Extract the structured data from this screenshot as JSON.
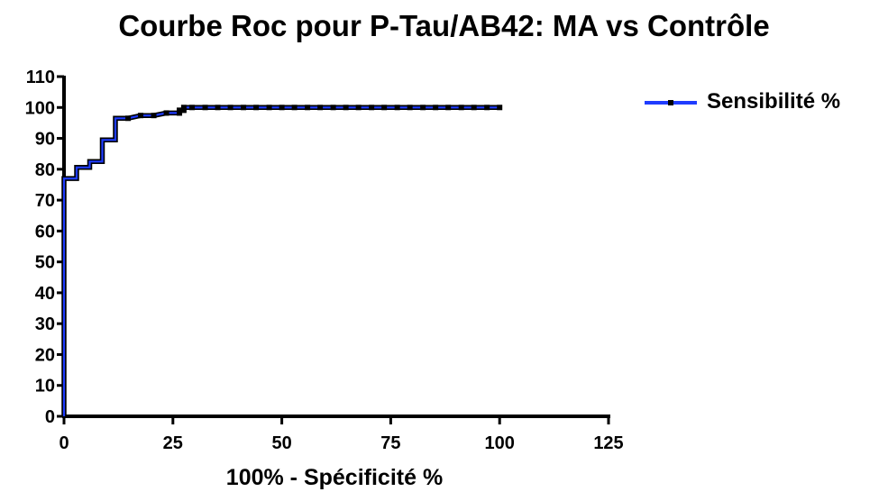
{
  "chart_data": {
    "type": "line",
    "title": "Courbe Roc pour P-Tau/AB42: MA vs Contrôle",
    "xlabel": "100% - Spécificité %",
    "ylabel": "",
    "xlim": [
      0,
      125
    ],
    "ylim": [
      0,
      110
    ],
    "x_ticks": [
      0,
      25,
      50,
      75,
      100,
      125
    ],
    "y_ticks": [
      0,
      10,
      20,
      30,
      40,
      50,
      60,
      70,
      80,
      90,
      100,
      110
    ],
    "legend_position": "right",
    "grid": false,
    "series": [
      {
        "name": "Sensibilité %",
        "color": "#1f3cff",
        "marker": "square",
        "points": [
          [
            0,
            0
          ],
          [
            0,
            77
          ],
          [
            2.9,
            77
          ],
          [
            2.9,
            80.6
          ],
          [
            5.9,
            80.6
          ],
          [
            5.9,
            82.5
          ],
          [
            8.8,
            82.5
          ],
          [
            8.8,
            89.5
          ],
          [
            11.8,
            89.5
          ],
          [
            11.8,
            96.5
          ],
          [
            14.7,
            96.5
          ],
          [
            17.6,
            97.4
          ],
          [
            20.6,
            97.4
          ],
          [
            23.5,
            98.2
          ],
          [
            26.5,
            98.2
          ],
          [
            26.5,
            99.1
          ],
          [
            27.5,
            99.1
          ],
          [
            27.5,
            100
          ],
          [
            29.4,
            100
          ],
          [
            32.4,
            100
          ],
          [
            35.3,
            100
          ],
          [
            38.2,
            100
          ],
          [
            41.2,
            100
          ],
          [
            44.1,
            100
          ],
          [
            47.1,
            100
          ],
          [
            50,
            100
          ],
          [
            52.9,
            100
          ],
          [
            55.9,
            100
          ],
          [
            58.8,
            100
          ],
          [
            61.8,
            100
          ],
          [
            64.7,
            100
          ],
          [
            67.6,
            100
          ],
          [
            70.6,
            100
          ],
          [
            73.5,
            100
          ],
          [
            76.5,
            100
          ],
          [
            79.4,
            100
          ],
          [
            82.4,
            100
          ],
          [
            85.3,
            100
          ],
          [
            88.2,
            100
          ],
          [
            91.2,
            100
          ],
          [
            94.1,
            100
          ],
          [
            97.1,
            100
          ],
          [
            100,
            100
          ]
        ]
      }
    ]
  }
}
